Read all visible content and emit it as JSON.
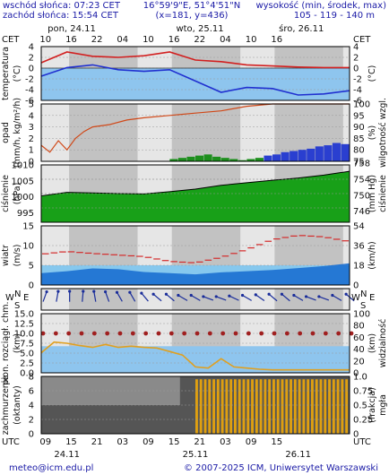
{
  "header": {
    "sunrise": "wschód słońca: 07:23 CET",
    "sunset": "zachód słońca: 15:54 CET",
    "coords": "16°59'9\"E, 51°4'51\"N",
    "grid": "(x=181,  y=436)",
    "elev_title": "wysokość (min, środek, max)",
    "elev_values": "105 - 119 - 140 m"
  },
  "top_axis": {
    "tz": "CET",
    "days": [
      "pon, 24.11",
      "wto, 25.11",
      "śro, 26.11"
    ],
    "hours": [
      "10",
      "16",
      "22",
      "04",
      "10",
      "16",
      "22",
      "04",
      "10",
      "16"
    ]
  },
  "bottom_axis": {
    "tz": "UTC",
    "hours": [
      "09",
      "15",
      "21",
      "03",
      "09",
      "15",
      "21",
      "03",
      "09",
      "15"
    ],
    "dates": [
      "24.11",
      "25.11",
      "26.11"
    ]
  },
  "footer": {
    "email": "meteo@icm.edu.pl",
    "copyright": "© 2007-2025 ICM, Uniwersytet Warszawski"
  },
  "chart_data": [
    {
      "type": "line",
      "panel": "temperature",
      "ylabel": "temperatura",
      "unit_left": "(°C)",
      "unit_right": "(°C)",
      "ylim": [
        -6,
        4
      ],
      "yticks": [
        "4",
        "2",
        "0",
        "-2",
        "-4",
        "-6"
      ],
      "x_hours": [
        0,
        6,
        12,
        18,
        24,
        30,
        36,
        42,
        48,
        54,
        60,
        66,
        72
      ],
      "series": [
        {
          "values": [
            1.0,
            3.0,
            2.2,
            2.0,
            2.3,
            3.0,
            1.5,
            1.2,
            0.6,
            0.4,
            0.2,
            0.1,
            0.1
          ],
          "color": "#d22020"
        },
        {
          "values": [
            -1.5,
            0.1,
            0.6,
            -0.3,
            -0.6,
            -0.3,
            -2.4,
            -4.5,
            -3.6,
            -3.8,
            -5.0,
            -4.8,
            -4.2
          ],
          "color": "#2030d0"
        }
      ]
    },
    {
      "type": "bar",
      "panel": "precipitation",
      "ylabel": "opad",
      "unit_left": "(mm/h, kg/m²/h)",
      "ylabel_right": "wilgotność wzgl.",
      "unit_right": "(%)",
      "ylim": [
        0,
        5
      ],
      "yticks": [
        "5",
        "4",
        "3",
        "2",
        "1",
        "0"
      ],
      "y2lim": [
        75,
        100
      ],
      "y2ticks": [
        "100",
        "95",
        "90",
        "85",
        "80",
        "75"
      ],
      "humidity": {
        "x_hours": [
          0,
          2,
          4,
          6,
          8,
          10,
          12,
          16,
          20,
          24,
          30,
          36,
          42,
          48,
          54,
          60,
          72
        ],
        "values": [
          82,
          79,
          84,
          80,
          85,
          88,
          90,
          91,
          93,
          94,
          95,
          96,
          97,
          99,
          100,
          100,
          100
        ],
        "color": "#d04818"
      },
      "bars": {
        "x_hours": [
          30,
          32,
          34,
          36,
          38,
          40,
          42,
          44,
          46,
          48,
          50,
          52,
          54,
          56,
          58,
          60,
          62,
          64,
          66,
          68,
          70
        ],
        "values": [
          0.2,
          0.3,
          0.4,
          0.5,
          0.6,
          0.4,
          0.3,
          0.2,
          0.1,
          0.2,
          0.3,
          0.5,
          0.6,
          0.8,
          0.9,
          1.0,
          1.1,
          1.3,
          1.4,
          1.6,
          1.5
        ],
        "colors": [
          "#1d8f1d",
          "#1d8f1d",
          "#1d8f1d",
          "#1d8f1d",
          "#1d8f1d",
          "#1d8f1d",
          "#1d8f1d",
          "#1d8f1d",
          "#1d8f1d",
          "#1d8f1d",
          "#1d8f1d",
          "#2a3fd0",
          "#2a3fd0",
          "#2a3fd0",
          "#2a3fd0",
          "#2a3fd0",
          "#2a3fd0",
          "#2a3fd0",
          "#2a3fd0",
          "#2a3fd0",
          "#2a3fd0"
        ]
      }
    },
    {
      "type": "area",
      "panel": "pressure",
      "ylabel": "ciśnienie",
      "unit_left": "(hPa)",
      "ylabel_right": "ciśnienie",
      "unit_right": "(mm Hg)",
      "ylim": [
        992,
        1010
      ],
      "yticks": [
        "1010",
        "1005",
        "1000",
        "995"
      ],
      "y2ticks": [
        "758",
        "754",
        "750",
        "746"
      ],
      "x_hours": [
        0,
        6,
        12,
        18,
        24,
        30,
        36,
        42,
        48,
        54,
        60,
        66,
        72
      ],
      "values": [
        1000.3,
        1001.4,
        1001.2,
        1001.0,
        1000.9,
        1001.6,
        1002.4,
        1003.6,
        1004.4,
        1005.2,
        1005.9,
        1006.8,
        1008.0
      ],
      "color": "#18a018"
    },
    {
      "type": "area",
      "panel": "wind",
      "ylabel": "wiatr",
      "unit_left": "(m/s)",
      "unit_right": "(km/h)",
      "ylim": [
        0,
        15
      ],
      "yticks": [
        "15",
        "10",
        "5",
        "0"
      ],
      "y2ticks": [
        "54",
        "36",
        "18",
        "0"
      ],
      "x_hours": [
        0,
        6,
        12,
        18,
        24,
        30,
        36,
        42,
        48,
        54,
        60,
        66,
        72
      ],
      "speed": [
        3.0,
        3.5,
        4.2,
        4.0,
        3.3,
        3.0,
        2.7,
        3.2,
        3.5,
        3.8,
        4.3,
        4.8,
        5.5
      ],
      "gust": [
        7.8,
        8.5,
        8.0,
        7.6,
        7.2,
        6.0,
        5.6,
        7.0,
        9.0,
        11.5,
        12.6,
        12.2,
        11.0
      ],
      "colors": {
        "speed": "#1b6fd0",
        "gust": "#d42a2a"
      }
    },
    {
      "type": "scatter",
      "panel": "wind_direction",
      "direction_labels": [
        "N",
        "E",
        "S",
        "W"
      ],
      "x_hours": [
        0,
        3,
        6,
        9,
        12,
        15,
        18,
        21,
        24,
        27,
        30,
        33,
        36,
        39,
        42,
        45,
        48,
        51,
        54,
        57,
        60,
        63,
        66,
        69,
        72
      ],
      "direction_deg": [
        200,
        190,
        180,
        185,
        170,
        160,
        150,
        150,
        140,
        130,
        130,
        120,
        120,
        110,
        110,
        115,
        120,
        125,
        130,
        130,
        120,
        110,
        110,
        120,
        130
      ],
      "color": "#1a2d9a"
    },
    {
      "type": "line",
      "panel": "visibility",
      "ylabel": "pion. rozciągł. chm.",
      "unit_left": "(km)",
      "ylabel_right": "widzialność",
      "unit_right": "(km)",
      "ylim": [
        0,
        15
      ],
      "yticks": [
        "15.0",
        "12.5",
        "10.0",
        "7.5",
        "5.0",
        "2.5",
        "0.0"
      ],
      "y2lim": [
        0,
        100
      ],
      "y2ticks": [
        "100",
        "80",
        "60",
        "40",
        "20",
        "0"
      ],
      "x_hours": [
        0,
        3,
        6,
        9,
        12,
        15,
        18,
        21,
        24,
        27,
        30,
        33,
        36,
        39,
        42,
        45,
        48,
        51,
        54,
        57,
        60,
        63,
        66,
        69,
        72
      ],
      "visibility": [
        34,
        52,
        50,
        46,
        43,
        48,
        43,
        45,
        43,
        42,
        36,
        30,
        10,
        8,
        24,
        10,
        8,
        6,
        5,
        5,
        5,
        5,
        5,
        5,
        5
      ],
      "cloud_extent": [
        10,
        10,
        10,
        10,
        10,
        10,
        10,
        10,
        10,
        10,
        10,
        10,
        10,
        10,
        10,
        10,
        10,
        10,
        10,
        10,
        10,
        10,
        10,
        10,
        10
      ],
      "colors": {
        "visibility": "#e0a020",
        "dots": "#a02020"
      }
    },
    {
      "type": "bar",
      "panel": "clouds",
      "ylabel": "zachmurzenie",
      "unit_left": "(oktanty)",
      "ylabel_right": "mgła",
      "unit_right": "(frakcja)",
      "ylim": [
        0,
        8
      ],
      "yticks": [
        "8",
        "6",
        "4",
        "2",
        "0"
      ],
      "y2lim": [
        0,
        1
      ],
      "y2ticks": [
        "1.0",
        "0.75",
        "0.5",
        "0.25",
        "0"
      ],
      "fog_start_hour": 36,
      "fog_fraction": 0.95,
      "fog_color": "#e0a010"
    }
  ]
}
